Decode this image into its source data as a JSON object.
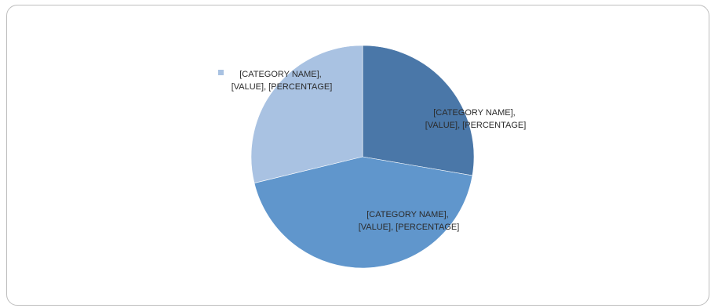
{
  "chart_data": {
    "type": "pie",
    "slices": [
      {
        "label_line1": "[CATEGORY NAME],",
        "label_line2": "[VALUE], [PERCENTAGE]",
        "value": 0.277,
        "color": "#4a77a8"
      },
      {
        "label_line1": "[CATEGORY NAME],",
        "label_line2": "[VALUE], [PERCENTAGE]",
        "value": 0.435,
        "color": "#6096cc"
      },
      {
        "label_line1": "[CATEGORY NAME],",
        "label_line2": "[VALUE], [PERCENTAGE]",
        "value": 0.288,
        "color": "#a9c2e2"
      }
    ],
    "start_angle_deg": 0,
    "direction": "clockwise",
    "legend_marker_color": "#a9c2e2"
  }
}
